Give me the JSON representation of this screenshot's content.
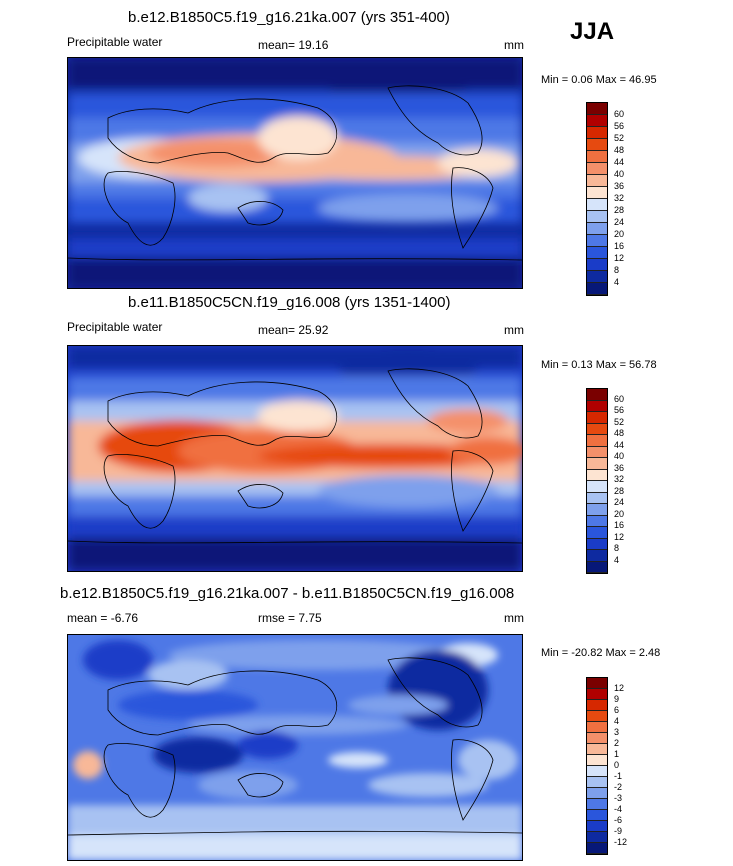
{
  "season": "JJA",
  "panels": [
    {
      "title": "b.e12.B1850C5.f19_g16.21ka.007 (yrs 351-400)",
      "left": "Precipitable water",
      "center": "mean=  19.16",
      "units": "mm",
      "minmax": "Min =   0.06 Max =  46.95",
      "levels": [
        "60",
        "56",
        "52",
        "48",
        "44",
        "40",
        "36",
        "32",
        "28",
        "24",
        "20",
        "16",
        "12",
        "8",
        "4"
      ],
      "colors": [
        "#7a0000",
        "#b00000",
        "#d62800",
        "#e64a10",
        "#f07040",
        "#f4906a",
        "#f8b898",
        "#fde4d2",
        "#d6e4fa",
        "#a8c2f2",
        "#7ea0ec",
        "#4e78e6",
        "#2a56dc",
        "#1a3cc8",
        "#0e2aa0",
        "#071878"
      ]
    },
    {
      "title": "b.e11.B1850C5CN.f19_g16.008 (yrs 1351-1400)",
      "left": "Precipitable water",
      "center": "mean=  25.92",
      "units": "mm",
      "minmax": "Min =   0.13 Max =  56.78",
      "levels": [
        "60",
        "56",
        "52",
        "48",
        "44",
        "40",
        "36",
        "32",
        "28",
        "24",
        "20",
        "16",
        "12",
        "8",
        "4"
      ],
      "colors": [
        "#7a0000",
        "#b00000",
        "#d62800",
        "#e64a10",
        "#f07040",
        "#f4906a",
        "#f8b898",
        "#fde4d2",
        "#d6e4fa",
        "#a8c2f2",
        "#7ea0ec",
        "#4e78e6",
        "#2a56dc",
        "#1a3cc8",
        "#0e2aa0",
        "#071878"
      ]
    },
    {
      "title": "b.e12.B1850C5.f19_g16.21ka.007 - b.e11.B1850C5CN.f19_g16.008",
      "left": "mean =  -6.76",
      "center": "rmse =   7.75",
      "units": "mm",
      "minmax": "Min = -20.82 Max =   2.48",
      "levels": [
        "12",
        "9",
        "6",
        "4",
        "3",
        "2",
        "1",
        "0",
        "-1",
        "-2",
        "-3",
        "-4",
        "-6",
        "-9",
        "-12"
      ],
      "colors": [
        "#7a0000",
        "#b00000",
        "#d62800",
        "#e64a10",
        "#f07040",
        "#f4906a",
        "#f8b898",
        "#fde4d2",
        "#d6e4fa",
        "#a8c2f2",
        "#7ea0ec",
        "#4e78e6",
        "#2a56dc",
        "#1a3cc8",
        "#0e2aa0",
        "#071878"
      ]
    }
  ]
}
